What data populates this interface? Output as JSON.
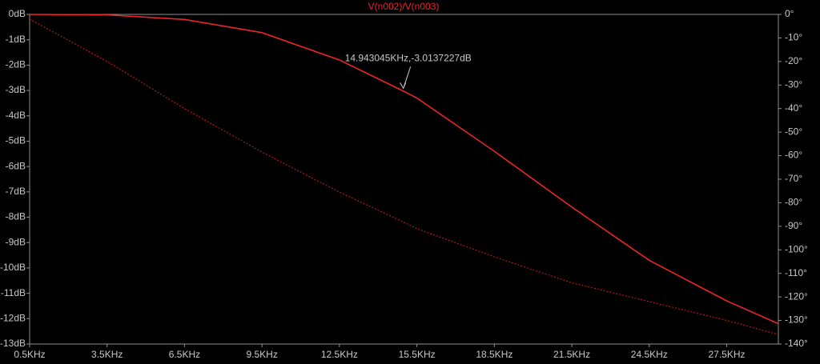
{
  "chart_data": {
    "type": "line",
    "title": "V(n002)/V(n003)",
    "annotation": "14.943045KHz,-3.0137227dB",
    "x": [
      0.5,
      3.5,
      6.5,
      9.5,
      12.5,
      14.943,
      15.5,
      18.5,
      21.5,
      24.5,
      27.5,
      29.5
    ],
    "series": [
      {
        "color": "#e8262a",
        "values": [
          0,
          -0.02,
          -0.2,
          -0.72,
          -1.8,
          -3.01,
          -3.3,
          -5.4,
          -7.6,
          -9.7,
          -11.3,
          -12.2
        ]
      },
      {
        "color": "#b01a1a",
        "axis": "y2",
        "dashed": true,
        "values": [
          -2,
          -20,
          -40,
          -58.5,
          -75.5,
          -88,
          -91,
          -103,
          -114,
          -122,
          -130,
          -136
        ]
      }
    ],
    "annotation_point": 5,
    "xlim": [
      0.5,
      29.5
    ],
    "xticks": [
      {
        "value": 0.5,
        "label": "0.5KHz"
      },
      {
        "value": 3.5,
        "label": "3.5KHz"
      },
      {
        "value": 6.5,
        "label": "6.5KHz"
      },
      {
        "value": 9.5,
        "label": "9.5KHz"
      },
      {
        "value": 12.5,
        "label": "12.5KHz"
      },
      {
        "value": 15.5,
        "label": "15.5KHz"
      },
      {
        "value": 18.5,
        "label": "18.5KHz"
      },
      {
        "value": 21.5,
        "label": "21.5KHz"
      },
      {
        "value": 24.5,
        "label": "24.5KHz"
      },
      {
        "value": 27.5,
        "label": "27.5KHz"
      }
    ],
    "ylim": [
      -13,
      0
    ],
    "yticks": [
      {
        "value": 0,
        "label": "0dB"
      },
      {
        "value": -1,
        "label": "-1dB"
      },
      {
        "value": -2,
        "label": "-2dB"
      },
      {
        "value": -3,
        "label": "-3dB"
      },
      {
        "value": -4,
        "label": "-4dB"
      },
      {
        "value": -5,
        "label": "-5dB"
      },
      {
        "value": -6,
        "label": "-6dB"
      },
      {
        "value": -7,
        "label": "-7dB"
      },
      {
        "value": -8,
        "label": "-8dB"
      },
      {
        "value": -9,
        "label": "-9dB"
      },
      {
        "value": -10,
        "label": "-10dB"
      },
      {
        "value": -11,
        "label": "-11dB"
      },
      {
        "value": -12,
        "label": "-12dB"
      },
      {
        "value": -13,
        "label": "-13dB"
      }
    ],
    "y2lim": [
      -140,
      0
    ],
    "y2ticks": [
      {
        "value": 0,
        "label": "0°"
      },
      {
        "value": -10,
        "label": "-10°"
      },
      {
        "value": -20,
        "label": "-20°"
      },
      {
        "value": -30,
        "label": "-30°"
      },
      {
        "value": -40,
        "label": "-40°"
      },
      {
        "value": -50,
        "label": "-50°"
      },
      {
        "value": -60,
        "label": "-60°"
      },
      {
        "value": -70,
        "label": "-70°"
      },
      {
        "value": -80,
        "label": "-80°"
      },
      {
        "value": -90,
        "label": "-90°"
      },
      {
        "value": -100,
        "label": "-100°"
      },
      {
        "value": -110,
        "label": "-110°"
      },
      {
        "value": -120,
        "label": "-120°"
      },
      {
        "value": -130,
        "label": "-130°"
      },
      {
        "value": -140,
        "label": "-140°"
      }
    ]
  }
}
